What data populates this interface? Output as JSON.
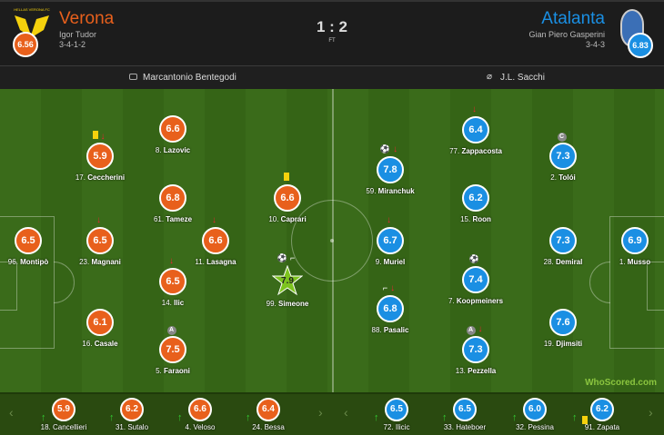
{
  "home": {
    "name": "Verona",
    "crest_text": "HELLAS VERONA FC",
    "manager": "Igor Tudor",
    "formation": "3-4-1-2",
    "rating": "6.56",
    "color": "#e8601c"
  },
  "away": {
    "name": "Atalanta",
    "manager": "Gian Piero Gasperini",
    "formation": "3-4-3",
    "rating": "6.83",
    "color": "#1a8fe3"
  },
  "score": "1 : 2",
  "status": "FT",
  "venue": "Marcantonio Bentegodi",
  "referee": "J.L. Sacchi",
  "home_players": [
    {
      "num": "96.",
      "name": "Montipò",
      "rating": "6.5",
      "icons": []
    },
    {
      "num": "17.",
      "name": "Ceccherini",
      "rating": "5.9",
      "icons": [
        "yellow-card",
        "sub-off"
      ]
    },
    {
      "num": "23.",
      "name": "Magnani",
      "rating": "6.5",
      "icons": [
        "sub-off"
      ]
    },
    {
      "num": "16.",
      "name": "Casale",
      "rating": "6.1",
      "icons": []
    },
    {
      "num": "8.",
      "name": "Lazovic",
      "rating": "6.6",
      "icons": []
    },
    {
      "num": "61.",
      "name": "Tameze",
      "rating": "6.8",
      "icons": []
    },
    {
      "num": "14.",
      "name": "Ilic",
      "rating": "6.5",
      "icons": [
        "sub-off"
      ]
    },
    {
      "num": "5.",
      "name": "Faraoni",
      "rating": "7.5",
      "icons": [
        "A"
      ]
    },
    {
      "num": "11.",
      "name": "Lasagna",
      "rating": "6.6",
      "icons": [
        "sub-off"
      ]
    },
    {
      "num": "10.",
      "name": "Caprari",
      "rating": "6.6",
      "icons": [
        "yellow-card"
      ]
    },
    {
      "num": "99.",
      "name": "Simeone",
      "rating": "7.9",
      "icons": [
        "goal",
        "assist"
      ],
      "motm": true
    }
  ],
  "away_players": [
    {
      "num": "59.",
      "name": "Miranchuk",
      "rating": "7.8",
      "icons": [
        "goal",
        "sub-off"
      ]
    },
    {
      "num": "9.",
      "name": "Muriel",
      "rating": "6.7",
      "icons": [
        "sub-off"
      ]
    },
    {
      "num": "88.",
      "name": "Pasalic",
      "rating": "6.8",
      "icons": [
        "assist",
        "sub-off"
      ]
    },
    {
      "num": "77.",
      "name": "Zappacosta",
      "rating": "6.4",
      "icons": [
        "sub-off"
      ]
    },
    {
      "num": "15.",
      "name": "Roon",
      "rating": "6.2",
      "icons": []
    },
    {
      "num": "7.",
      "name": "Koopmeiners",
      "rating": "7.4",
      "icons": [
        "goal"
      ]
    },
    {
      "num": "13.",
      "name": "Pezzella",
      "rating": "7.3",
      "icons": [
        "A",
        "sub-off"
      ]
    },
    {
      "num": "2.",
      "name": "Tolói",
      "rating": "7.3",
      "icons": [
        "C"
      ]
    },
    {
      "num": "28.",
      "name": "Demiral",
      "rating": "7.3",
      "icons": []
    },
    {
      "num": "19.",
      "name": "Djimsiti",
      "rating": "7.6",
      "icons": []
    },
    {
      "num": "1.",
      "name": "Musso",
      "rating": "6.9",
      "icons": []
    }
  ],
  "home_subs": [
    {
      "num": "18.",
      "name": "Cancellieri",
      "rating": "5.9"
    },
    {
      "num": "31.",
      "name": "Sutalo",
      "rating": "6.2"
    },
    {
      "num": "4.",
      "name": "Veloso",
      "rating": "6.6"
    },
    {
      "num": "24.",
      "name": "Bessa",
      "rating": "6.4"
    }
  ],
  "away_subs": [
    {
      "num": "72.",
      "name": "Ilicic",
      "rating": "6.5"
    },
    {
      "num": "33.",
      "name": "Hateboer",
      "rating": "6.5"
    },
    {
      "num": "32.",
      "name": "Pessina",
      "rating": "6.0"
    },
    {
      "num": "91.",
      "name": "Zapata",
      "rating": "6.2",
      "yellow": true
    }
  ],
  "watermark": "WhoScored.com",
  "nav": {
    "prev": "‹",
    "next": "›"
  }
}
